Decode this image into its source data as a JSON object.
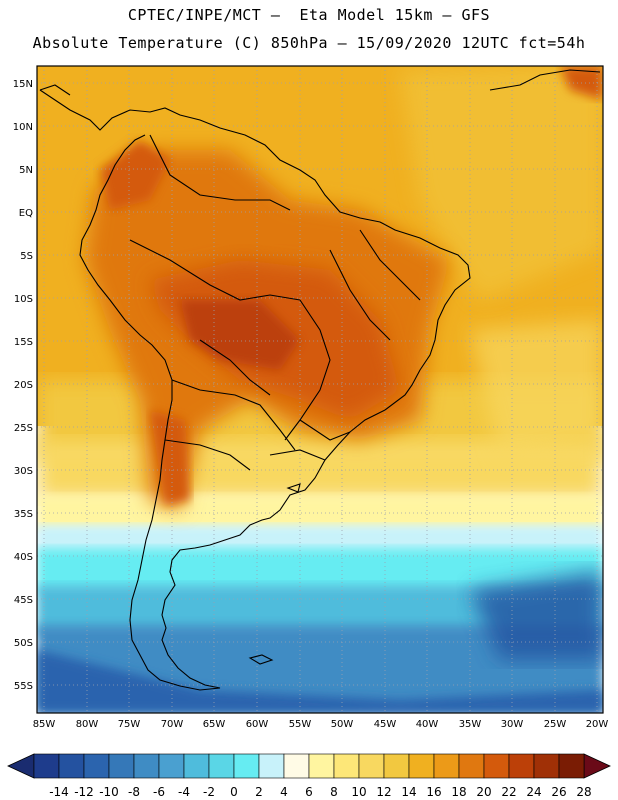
{
  "header": {
    "line1": "CPTEC/INPE/MCT –  Eta Model 15km – GFS",
    "line2": "Absolute Temperature (C) 850hPa – 15/09/2020 12UTC fct=54h"
  },
  "axes": {
    "lat_labels": [
      "15N",
      "10N",
      "5N",
      "EQ",
      "5S",
      "10S",
      "15S",
      "20S",
      "25S",
      "30S",
      "35S",
      "40S",
      "45S",
      "50S",
      "55S"
    ],
    "lon_labels": [
      "85W",
      "80W",
      "75W",
      "70W",
      "65W",
      "60W",
      "55W",
      "50W",
      "45W",
      "40W",
      "35W",
      "30W",
      "25W",
      "20W"
    ]
  },
  "colorbar": {
    "ticks": [
      "-14",
      "-12",
      "-10",
      "-8",
      "-6",
      "-4",
      "-2",
      "0",
      "2",
      "4",
      "6",
      "8",
      "10",
      "12",
      "14",
      "16",
      "18",
      "20",
      "22",
      "24",
      "26",
      "28"
    ],
    "colors": [
      "#1e3c8c",
      "#2452a0",
      "#2b64ae",
      "#3578b8",
      "#3f8cc4",
      "#4aa0d0",
      "#4fbcdc",
      "#5ad6e6",
      "#66ecf2",
      "#c8f2fa",
      "#fffbe6",
      "#fff5a0",
      "#fde778",
      "#f8d860",
      "#f2c840",
      "#f0b020",
      "#ec9a18",
      "#e07810",
      "#d45a0c",
      "#bc4008",
      "#a03006",
      "#7a1c04"
    ],
    "low_triangle_color": "#1a2c70",
    "high_triangle_color": "#6a0a18"
  }
}
